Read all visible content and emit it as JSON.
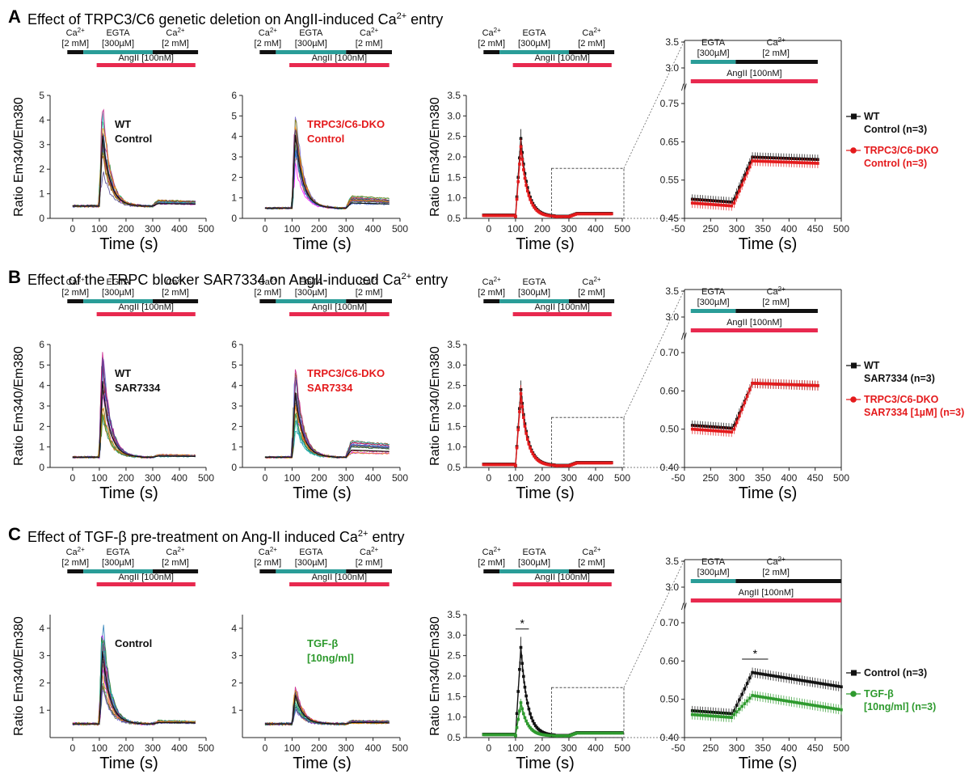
{
  "figure": {
    "rows": [
      {
        "letter": "A",
        "heading": "Effect of TRPC3/C6 genetic deletion on AngII-induced Ca",
        "heading_sup": "2+",
        "heading_tail": " entry",
        "panels": [
          {
            "kind": "traces",
            "label_lines": [
              "WT",
              "Control"
            ],
            "label_color": "#111111",
            "ylim": [
              0,
              5
            ],
            "yticks": [
              0,
              1,
              2,
              3,
              4,
              5
            ],
            "peak": 4.6,
            "base": 0.5,
            "plateau": 0.7,
            "colorful": true
          },
          {
            "kind": "traces",
            "label_lines": [
              "TRPC3/C6-DKO",
              "Control"
            ],
            "label_color": "#e41a1c",
            "ylim": [
              0,
              6
            ],
            "yticks": [
              0,
              1,
              2,
              3,
              4,
              5,
              6
            ],
            "peak": 5.6,
            "base": 0.5,
            "plateau": 1.0,
            "colorful": true
          },
          {
            "kind": "mean",
            "ylim": [
              0.5,
              3.5
            ],
            "yticks": [
              0.5,
              1.0,
              1.5,
              2.0,
              2.5,
              3.0,
              3.5
            ],
            "peak1": 2.45,
            "peak2": 2.25,
            "color2": "#e41a1c"
          },
          {
            "kind": "zoom",
            "ylim_low": [
              0.45,
              0.75
            ],
            "yticks_low": [
              0.45,
              0.55,
              0.65,
              0.75
            ],
            "yticks_top": [
              3.0,
              3.5
            ],
            "s1": {
              "base": 0.5,
              "plat": 0.61
            },
            "s2": {
              "base": 0.49,
              "plat": 0.6
            },
            "legend": [
              {
                "lines": [
                  "WT",
                  "Control (n=3)"
                ],
                "color": "#111111"
              },
              {
                "lines": [
                  "TRPC3/C6-DKO",
                  "Control (n=3)"
                ],
                "color": "#e41a1c"
              }
            ],
            "color2": "#e41a1c",
            "star": false
          }
        ]
      },
      {
        "letter": "B",
        "heading": "Effect of the TRPC blocker SAR7334 on AngII-induced Ca",
        "heading_sup": "2+",
        "heading_tail": " entry",
        "panels": [
          {
            "kind": "traces",
            "label_lines": [
              "WT",
              "SAR7334"
            ],
            "label_color": "#111111",
            "ylim": [
              0,
              6
            ],
            "yticks": [
              0,
              1,
              2,
              3,
              4,
              5,
              6
            ],
            "peak": 5.8,
            "base": 0.5,
            "plateau": 0.6,
            "colorful": true
          },
          {
            "kind": "traces",
            "label_lines": [
              "TRPC3/C6-DKO",
              "SAR7334"
            ],
            "label_color": "#e41a1c",
            "ylim": [
              0,
              6
            ],
            "yticks": [
              0,
              1,
              2,
              3,
              4,
              5,
              6
            ],
            "peak": 5.0,
            "base": 0.5,
            "plateau": 1.2,
            "colorful": true
          },
          {
            "kind": "mean",
            "ylim": [
              0.5,
              3.5
            ],
            "yticks": [
              0.5,
              1.0,
              1.5,
              2.0,
              2.5,
              3.0,
              3.5
            ],
            "peak1": 2.4,
            "peak2": 2.3,
            "color2": "#e41a1c"
          },
          {
            "kind": "zoom",
            "ylim_low": [
              0.4,
              0.7
            ],
            "yticks_low": [
              0.4,
              0.5,
              0.6,
              0.7
            ],
            "yticks_top": [
              3.0,
              3.5
            ],
            "s1": {
              "base": 0.51,
              "plat": 0.62
            },
            "s2": {
              "base": 0.5,
              "plat": 0.62
            },
            "legend": [
              {
                "lines": [
                  "WT",
                  "SAR7334 (n=3)"
                ],
                "color": "#111111"
              },
              {
                "lines": [
                  "TRPC3/C6-DKO",
                  "SAR7334 [1µM] (n=3)"
                ],
                "color": "#e41a1c"
              }
            ],
            "color2": "#e41a1c",
            "star": false
          }
        ]
      },
      {
        "letter": "C",
        "heading": "Effect of TGF-β pre-treatment on Ang-II induced Ca",
        "heading_sup": "2+",
        "heading_tail": " entry",
        "panels": [
          {
            "kind": "traces",
            "label_lines": [
              "Control"
            ],
            "label_color": "#111111",
            "ylim": [
              0,
              4.5
            ],
            "yticks": [
              1,
              2,
              3,
              4
            ],
            "peak": 4.3,
            "base": 0.5,
            "plateau": 0.6,
            "colorful": true
          },
          {
            "kind": "traces",
            "label_lines": [
              "TGF-β",
              "[10ng/ml]"
            ],
            "label_color": "#2e9a2e",
            "ylim": [
              0,
              4.5
            ],
            "yticks": [
              1,
              2,
              3,
              4
            ],
            "peak": 2.0,
            "base": 0.5,
            "plateau": 0.6,
            "colorful": true
          },
          {
            "kind": "mean",
            "ylim": [
              0.5,
              3.5
            ],
            "yticks": [
              0.5,
              1.0,
              1.5,
              2.0,
              2.5,
              3.0,
              3.5
            ],
            "peak1": 2.7,
            "peak2": 1.35,
            "color2": "#2e9a2e",
            "star": true
          },
          {
            "kind": "zoom",
            "ylim_low": [
              0.4,
              0.7
            ],
            "yticks_low": [
              0.4,
              0.5,
              0.6,
              0.7
            ],
            "yticks_top": [
              3.0,
              3.5
            ],
            "s1": {
              "base": 0.47,
              "plat": 0.57
            },
            "s2": {
              "base": 0.46,
              "plat": 0.51
            },
            "legend": [
              {
                "lines": [
                  "Control (n=3)"
                ],
                "color": "#111111"
              },
              {
                "lines": [
                  "TGF-β",
                  "[10ng/ml] (n=3)"
                ],
                "color": "#2e9a2e"
              }
            ],
            "color2": "#2e9a2e",
            "star": true
          }
        ]
      }
    ],
    "protocol": {
      "ca_label": "Ca",
      "ca_sup": "2+",
      "ca_conc": "[2 mM]",
      "egta_label": "EGTA",
      "egta_conc": "[300µM]",
      "angii": "AngII [100nM]"
    },
    "axes": {
      "xlabel": "Time (s)",
      "ylabel": "Ratio Em340/Em380",
      "xticks": [
        0,
        100,
        200,
        300,
        400,
        500
      ],
      "xticks_zoom": [
        -50,
        250,
        300,
        350,
        400,
        450,
        500
      ],
      "star_label": "*"
    },
    "colors": {
      "black": "#111111",
      "red": "#e41a1c",
      "green": "#2e9a2e",
      "teal": "#2a9d98",
      "pink": "#e8294f",
      "gray": "#888888"
    }
  },
  "chart_data": [
    {
      "type": "line",
      "panel": "A1",
      "title": "WT Control",
      "xlabel": "Time (s)",
      "ylabel": "Ratio Em340/Em380",
      "xlim": [
        -30,
        500
      ],
      "ylim": [
        0,
        5
      ],
      "series": [
        {
          "values_description_points": [
            [
              0,
              0.5
            ],
            [
              100,
              0.5
            ],
            [
              115,
              4.6
            ],
            [
              160,
              1.2
            ],
            [
              230,
              0.5
            ],
            [
              300,
              0.5
            ],
            [
              320,
              0.8
            ],
            [
              460,
              0.7
            ]
          ]
        }
      ]
    },
    {
      "type": "line",
      "panel": "A2",
      "title": "TRPC3/C6-DKO Control",
      "xlabel": "Time (s)",
      "ylabel": "Ratio Em340/Em380",
      "xlim": [
        -30,
        500
      ],
      "ylim": [
        0,
        6
      ],
      "series": [
        {
          "values_description_points": [
            [
              0,
              0.5
            ],
            [
              100,
              0.5
            ],
            [
              110,
              5.6
            ],
            [
              150,
              1.5
            ],
            [
              230,
              0.6
            ],
            [
              300,
              0.5
            ],
            [
              320,
              1.0
            ],
            [
              460,
              0.9
            ]
          ]
        }
      ]
    },
    {
      "type": "line",
      "panel": "A3",
      "xlabel": "Time (s)",
      "ylabel": "Ratio Em340/Em380",
      "xlim": [
        -30,
        500
      ],
      "ylim": [
        0.5,
        3.5
      ],
      "series": [
        {
          "name": "WT Control (n=3)",
          "values": [
            [
              0,
              0.55
            ],
            [
              100,
              0.6
            ],
            [
              120,
              2.45
            ],
            [
              160,
              1.2
            ],
            [
              220,
              0.6
            ],
            [
              300,
              0.55
            ],
            [
              330,
              0.62
            ],
            [
              460,
              0.62
            ]
          ]
        },
        {
          "name": "TRPC3/C6-DKO Control (n=3)",
          "values": [
            [
              0,
              0.55
            ],
            [
              100,
              0.6
            ],
            [
              120,
              2.25
            ],
            [
              160,
              1.1
            ],
            [
              220,
              0.6
            ],
            [
              300,
              0.55
            ],
            [
              330,
              0.61
            ],
            [
              460,
              0.6
            ]
          ]
        }
      ]
    },
    {
      "type": "line",
      "panel": "A4",
      "xlabel": "Time (s)",
      "xlim": [
        200,
        500
      ],
      "ylim": [
        0.45,
        0.75
      ],
      "series": [
        {
          "name": "WT Control (n=3)",
          "values": [
            [
              215,
              0.52
            ],
            [
              290,
              0.5
            ],
            [
              330,
              0.6
            ],
            [
              450,
              0.61
            ]
          ]
        },
        {
          "name": "TRPC3/C6-DKO Control (n=3)",
          "values": [
            [
              215,
              0.51
            ],
            [
              290,
              0.49
            ],
            [
              330,
              0.62
            ],
            [
              450,
              0.6
            ]
          ]
        }
      ]
    },
    {
      "type": "line",
      "panel": "B3",
      "xlabel": "Time (s)",
      "ylabel": "Ratio Em340/Em380",
      "xlim": [
        -30,
        500
      ],
      "ylim": [
        0.5,
        3.5
      ],
      "series": [
        {
          "name": "WT SAR7334 (n=3)",
          "values": [
            [
              0,
              0.55
            ],
            [
              100,
              0.6
            ],
            [
              120,
              2.4
            ],
            [
              160,
              1.1
            ],
            [
              220,
              0.6
            ],
            [
              300,
              0.55
            ],
            [
              330,
              0.62
            ],
            [
              460,
              0.62
            ]
          ]
        },
        {
          "name": "TRPC3/C6-DKO SAR7334 [1µM] (n=3)",
          "values": [
            [
              0,
              0.55
            ],
            [
              100,
              0.6
            ],
            [
              120,
              2.3
            ],
            [
              160,
              1.1
            ],
            [
              220,
              0.6
            ],
            [
              300,
              0.55
            ],
            [
              330,
              0.61
            ],
            [
              460,
              0.61
            ]
          ]
        }
      ]
    },
    {
      "type": "line",
      "panel": "C3",
      "xlabel": "Time (s)",
      "ylabel": "Ratio Em340/Em380",
      "xlim": [
        -30,
        500
      ],
      "ylim": [
        0.5,
        3.5
      ],
      "series": [
        {
          "name": "Control (n=3)",
          "values": [
            [
              0,
              0.5
            ],
            [
              100,
              0.55
            ],
            [
              125,
              2.7
            ],
            [
              170,
              1.0
            ],
            [
              230,
              0.55
            ],
            [
              300,
              0.52
            ],
            [
              330,
              0.57
            ],
            [
              500,
              0.55
            ]
          ]
        },
        {
          "name": "TGF-β [10ng/ml] (n=3)",
          "values": [
            [
              0,
              0.5
            ],
            [
              100,
              0.52
            ],
            [
              130,
              1.35
            ],
            [
              170,
              0.8
            ],
            [
              230,
              0.52
            ],
            [
              300,
              0.5
            ],
            [
              330,
              0.52
            ],
            [
              500,
              0.52
            ]
          ]
        }
      ]
    },
    {
      "type": "line",
      "panel": "C4",
      "xlabel": "Time (s)",
      "xlim": [
        200,
        500
      ],
      "ylim": [
        0.4,
        0.7
      ],
      "series": [
        {
          "name": "Control (n=3)",
          "values": [
            [
              215,
              0.47
            ],
            [
              300,
              0.47
            ],
            [
              320,
              0.57
            ],
            [
              500,
              0.53
            ]
          ]
        },
        {
          "name": "TGF-β [10ng/ml] (n=3)",
          "values": [
            [
              215,
              0.46
            ],
            [
              300,
              0.46
            ],
            [
              320,
              0.51
            ],
            [
              500,
              0.51
            ]
          ]
        }
      ]
    }
  ]
}
